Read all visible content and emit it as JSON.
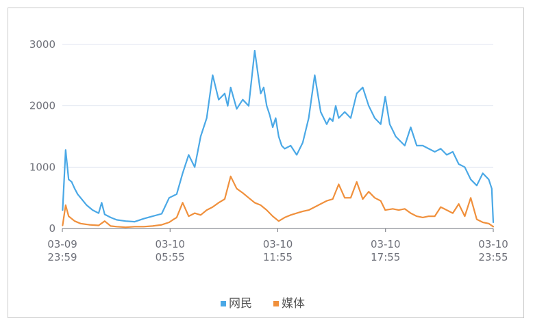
{
  "chart_data": {
    "type": "line",
    "title": "",
    "xlabel": "",
    "ylabel": "",
    "ylim": [
      0,
      3000
    ],
    "y_ticks": [
      0,
      1000,
      2000,
      3000
    ],
    "grid": true,
    "legend_position": "bottom-center",
    "x_ticks": [
      {
        "date": "03-09",
        "time": "23:59"
      },
      {
        "date": "03-10",
        "time": "05:55"
      },
      {
        "date": "03-10",
        "time": "11:55"
      },
      {
        "date": "03-10",
        "time": "17:55"
      },
      {
        "date": "03-10",
        "time": "23:55"
      }
    ],
    "x_range": [
      "03-09 23:59",
      "03-10 23:55"
    ],
    "series": [
      {
        "name": "网民",
        "color": "#4aa8e6",
        "x": [
          "03-10 00:00",
          "03-10 00:10",
          "03-10 00:20",
          "03-10 00:30",
          "03-10 00:40",
          "03-10 00:50",
          "03-10 01:00",
          "03-10 01:20",
          "03-10 01:40",
          "03-10 02:00",
          "03-10 02:10",
          "03-10 02:20",
          "03-10 02:40",
          "03-10 03:00",
          "03-10 03:30",
          "03-10 04:00",
          "03-10 04:30",
          "03-10 05:00",
          "03-10 05:30",
          "03-10 05:55",
          "03-10 06:20",
          "03-10 06:40",
          "03-10 07:00",
          "03-10 07:20",
          "03-10 07:40",
          "03-10 08:00",
          "03-10 08:20",
          "03-10 08:40",
          "03-10 09:00",
          "03-10 09:10",
          "03-10 09:20",
          "03-10 09:40",
          "03-10 10:00",
          "03-10 10:20",
          "03-10 10:40",
          "03-10 11:00",
          "03-10 11:10",
          "03-10 11:20",
          "03-10 11:30",
          "03-10 11:40",
          "03-10 11:50",
          "03-10 12:00",
          "03-10 12:10",
          "03-10 12:20",
          "03-10 12:40",
          "03-10 13:00",
          "03-10 13:20",
          "03-10 13:40",
          "03-10 14:00",
          "03-10 14:20",
          "03-10 14:40",
          "03-10 14:50",
          "03-10 15:00",
          "03-10 15:10",
          "03-10 15:20",
          "03-10 15:40",
          "03-10 16:00",
          "03-10 16:20",
          "03-10 16:40",
          "03-10 17:00",
          "03-10 17:20",
          "03-10 17:40",
          "03-10 17:55",
          "03-10 18:10",
          "03-10 18:20",
          "03-10 18:30",
          "03-10 18:40",
          "03-10 19:00",
          "03-10 19:20",
          "03-10 19:40",
          "03-10 20:00",
          "03-10 20:20",
          "03-10 20:40",
          "03-10 21:00",
          "03-10 21:20",
          "03-10 21:40",
          "03-10 22:00",
          "03-10 22:20",
          "03-10 22:40",
          "03-10 23:00",
          "03-10 23:20",
          "03-10 23:40",
          "03-10 23:50",
          "03-10 23:55"
        ],
        "values": [
          300,
          1280,
          800,
          760,
          650,
          560,
          500,
          380,
          300,
          250,
          420,
          230,
          180,
          140,
          120,
          110,
          160,
          200,
          240,
          500,
          560,
          900,
          1200,
          1000,
          1500,
          1800,
          2500,
          2100,
          2200,
          2000,
          2300,
          1950,
          2100,
          2000,
          2900,
          2200,
          2300,
          2000,
          1850,
          1650,
          1800,
          1500,
          1350,
          1300,
          1350,
          1200,
          1400,
          1800,
          2500,
          1900,
          1700,
          1800,
          1750,
          2000,
          1800,
          1900,
          1800,
          2200,
          2300,
          2000,
          1800,
          1700,
          2150,
          1700,
          1600,
          1500,
          1450,
          1350,
          1650,
          1350,
          1350,
          1300,
          1250,
          1300,
          1200,
          1250,
          1050,
          1000,
          800,
          700,
          900,
          800,
          650,
          100
        ]
      },
      {
        "name": "媒体",
        "color": "#f0903c",
        "x": [
          "03-10 00:00",
          "03-10 00:10",
          "03-10 00:20",
          "03-10 00:40",
          "03-10 01:00",
          "03-10 01:30",
          "03-10 02:00",
          "03-10 02:20",
          "03-10 02:40",
          "03-10 03:00",
          "03-10 03:30",
          "03-10 04:00",
          "03-10 04:30",
          "03-10 05:00",
          "03-10 05:30",
          "03-10 05:55",
          "03-10 06:10",
          "03-10 06:20",
          "03-10 06:40",
          "03-10 07:00",
          "03-10 07:20",
          "03-10 07:40",
          "03-10 08:00",
          "03-10 08:20",
          "03-10 08:40",
          "03-10 09:00",
          "03-10 09:20",
          "03-10 09:40",
          "03-10 10:00",
          "03-10 10:20",
          "03-10 10:40",
          "03-10 11:00",
          "03-10 11:20",
          "03-10 11:40",
          "03-10 12:00",
          "03-10 12:20",
          "03-10 12:40",
          "03-10 13:00",
          "03-10 13:20",
          "03-10 13:40",
          "03-10 14:00",
          "03-10 14:20",
          "03-10 14:40",
          "03-10 15:00",
          "03-10 15:20",
          "03-10 15:40",
          "03-10 16:00",
          "03-10 16:20",
          "03-10 16:40",
          "03-10 17:00",
          "03-10 17:20",
          "03-10 17:40",
          "03-10 17:55",
          "03-10 18:20",
          "03-10 18:40",
          "03-10 19:00",
          "03-10 19:20",
          "03-10 19:40",
          "03-10 20:00",
          "03-10 20:20",
          "03-10 20:40",
          "03-10 21:00",
          "03-10 21:20",
          "03-10 21:40",
          "03-10 22:00",
          "03-10 22:20",
          "03-10 22:40",
          "03-10 23:00",
          "03-10 23:20",
          "03-10 23:40",
          "03-10 23:55"
        ],
        "values": [
          50,
          380,
          200,
          120,
          80,
          60,
          50,
          120,
          40,
          30,
          20,
          30,
          30,
          40,
          60,
          100,
          150,
          180,
          420,
          200,
          250,
          220,
          300,
          350,
          420,
          480,
          850,
          650,
          580,
          500,
          420,
          380,
          300,
          200,
          120,
          180,
          220,
          250,
          280,
          300,
          350,
          400,
          450,
          480,
          720,
          500,
          500,
          760,
          480,
          600,
          500,
          450,
          300,
          320,
          300,
          320,
          250,
          200,
          180,
          200,
          200,
          350,
          300,
          250,
          400,
          200,
          500,
          150,
          100,
          80,
          30
        ]
      }
    ]
  }
}
